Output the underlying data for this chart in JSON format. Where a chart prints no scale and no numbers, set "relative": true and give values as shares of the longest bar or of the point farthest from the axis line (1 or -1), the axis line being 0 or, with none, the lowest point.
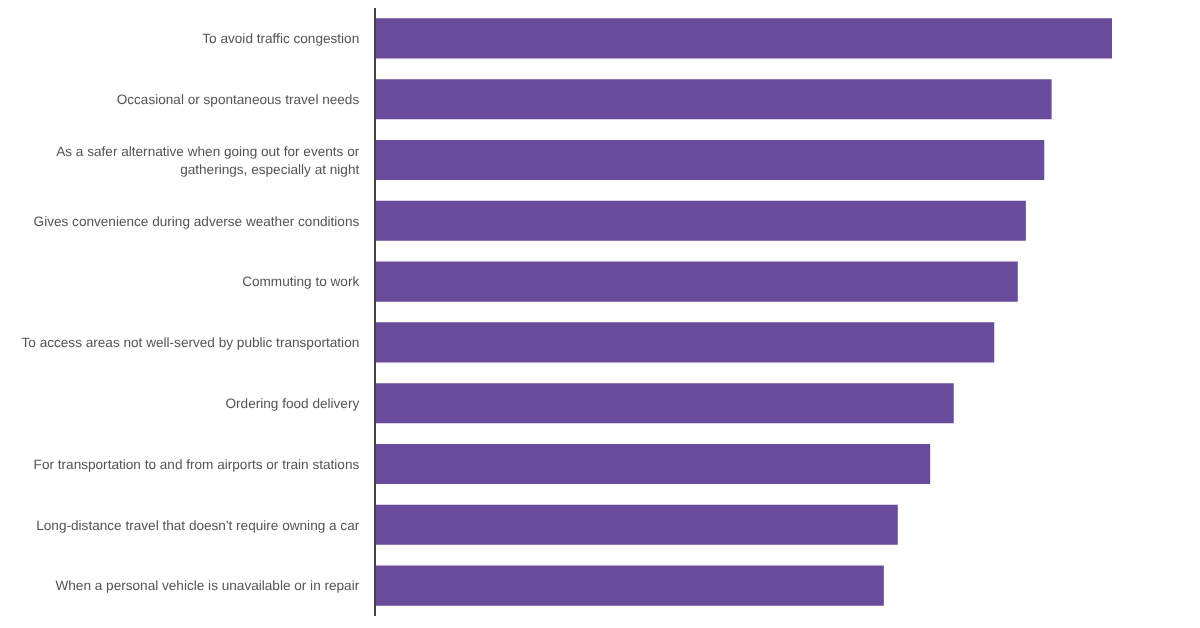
{
  "chart_data": {
    "type": "bar",
    "orientation": "horizontal",
    "relative": true,
    "categories": [
      "To avoid traffic congestion",
      "Occasional or spontaneous travel needs",
      "As a safer alternative when going out for events or gatherings, especially at night",
      "Gives convenience during adverse weather conditions",
      "Commuting to work",
      "To access areas not well-served by public transportation",
      "Ordering food delivery",
      "For transportation to and from airports or train stations",
      "Long-distance travel that doesn't require owning a car",
      "When a personal vehicle is unavailable or in repair"
    ],
    "values": [
      1,
      0.918,
      0.908,
      0.883,
      0.872,
      0.84,
      0.785,
      0.753,
      0.709,
      0.69
    ],
    "color": "#6a4c9c"
  }
}
